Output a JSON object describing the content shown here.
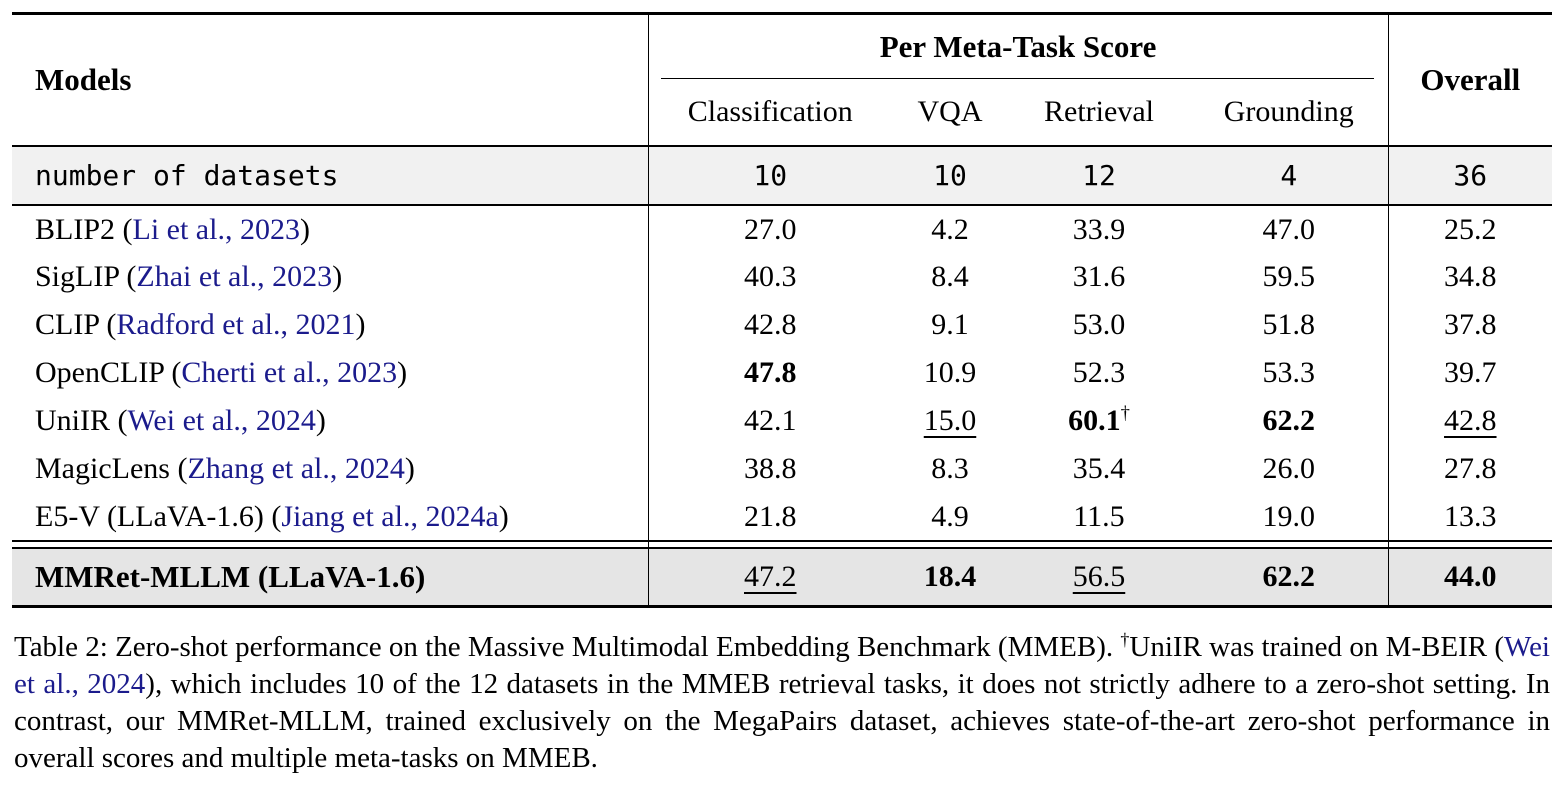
{
  "colors": {
    "cite": "#1b1b8c",
    "rule": "#000000",
    "row_bg_light": "#f1f1f1",
    "row_bg_dark": "#e5e5e5"
  },
  "table": {
    "header": {
      "models_label": "Models",
      "group_label": "Per Meta-Task Score",
      "overall_label": "Overall",
      "subheaders": [
        "Classification",
        "VQA",
        "Retrieval",
        "Grounding"
      ]
    },
    "datasets_row": {
      "label": "number of datasets",
      "values": [
        "10",
        "10",
        "12",
        "4",
        "36"
      ]
    },
    "rows": [
      {
        "model": [
          {
            "t": "BLIP2 (",
            "s": "text"
          },
          {
            "t": "Li et al., 2023",
            "s": "cite"
          },
          {
            "t": ")",
            "s": "text"
          }
        ],
        "cells": [
          {
            "v": "27.0"
          },
          {
            "v": "4.2"
          },
          {
            "v": "33.9"
          },
          {
            "v": "47.0"
          },
          {
            "v": "25.2"
          }
        ]
      },
      {
        "model": [
          {
            "t": "SigLIP (",
            "s": "text"
          },
          {
            "t": "Zhai et al., 2023",
            "s": "cite"
          },
          {
            "t": ")",
            "s": "text"
          }
        ],
        "cells": [
          {
            "v": "40.3"
          },
          {
            "v": "8.4"
          },
          {
            "v": "31.6"
          },
          {
            "v": "59.5"
          },
          {
            "v": "34.8"
          }
        ]
      },
      {
        "model": [
          {
            "t": "CLIP (",
            "s": "text"
          },
          {
            "t": "Radford et al., 2021",
            "s": "cite"
          },
          {
            "t": ")",
            "s": "text"
          }
        ],
        "cells": [
          {
            "v": "42.8"
          },
          {
            "v": "9.1"
          },
          {
            "v": "53.0"
          },
          {
            "v": "51.8"
          },
          {
            "v": "37.8"
          }
        ]
      },
      {
        "model": [
          {
            "t": "OpenCLIP (",
            "s": "text"
          },
          {
            "t": "Cherti et al., 2023",
            "s": "cite"
          },
          {
            "t": ")",
            "s": "text"
          }
        ],
        "cells": [
          {
            "v": "47.8",
            "b": true
          },
          {
            "v": "10.9"
          },
          {
            "v": "52.3"
          },
          {
            "v": "53.3"
          },
          {
            "v": "39.7"
          }
        ]
      },
      {
        "model": [
          {
            "t": "UniIR (",
            "s": "text"
          },
          {
            "t": "Wei et al., 2024",
            "s": "cite"
          },
          {
            "t": ")",
            "s": "text"
          }
        ],
        "cells": [
          {
            "v": "42.1"
          },
          {
            "v": "15.0",
            "u": true
          },
          {
            "v": "60.1",
            "b": true,
            "sup": "†"
          },
          {
            "v": "62.2",
            "b": true
          },
          {
            "v": "42.8",
            "u": true
          }
        ]
      },
      {
        "model": [
          {
            "t": "MagicLens (",
            "s": "text"
          },
          {
            "t": "Zhang et al., 2024",
            "s": "cite"
          },
          {
            "t": ")",
            "s": "text"
          }
        ],
        "cells": [
          {
            "v": "38.8"
          },
          {
            "v": "8.3"
          },
          {
            "v": "35.4"
          },
          {
            "v": "26.0"
          },
          {
            "v": "27.8"
          }
        ]
      },
      {
        "model": [
          {
            "t": "E5-V (LLaVA-1.6) (",
            "s": "text"
          },
          {
            "t": "Jiang et al., 2024a",
            "s": "cite"
          },
          {
            "t": ")",
            "s": "text"
          }
        ],
        "cells": [
          {
            "v": "21.8"
          },
          {
            "v": "4.9"
          },
          {
            "v": "11.5"
          },
          {
            "v": "19.0"
          },
          {
            "v": "13.3"
          }
        ]
      }
    ],
    "highlight_row": {
      "model": [
        {
          "t": "MMRet-MLLM (LLaVA-1.6)",
          "s": "text"
        }
      ],
      "cells": [
        {
          "v": "47.2",
          "u": true
        },
        {
          "v": "18.4",
          "b": true
        },
        {
          "v": "56.5",
          "u": true
        },
        {
          "v": "62.2",
          "b": true
        },
        {
          "v": "44.0",
          "b": true
        }
      ]
    }
  },
  "caption": {
    "segments": [
      {
        "t": "Table 2: Zero-shot performance on the Massive Multimodal Embedding Benchmark (MMEB). ",
        "s": "text"
      },
      {
        "t": "†",
        "s": "sup"
      },
      {
        "t": "UniIR was trained on M-BEIR (",
        "s": "text"
      },
      {
        "t": "Wei et al., 2024",
        "s": "cite"
      },
      {
        "t": "), which includes 10 of the 12 datasets in the MMEB retrieval tasks, it does not strictly adhere to a zero-shot setting. In contrast, our MMRet-MLLM, trained exclusively on the MegaPairs dataset, achieves state-of-the-art zero-shot performance in overall scores and multiple meta-tasks on MMEB.",
        "s": "text"
      }
    ]
  }
}
